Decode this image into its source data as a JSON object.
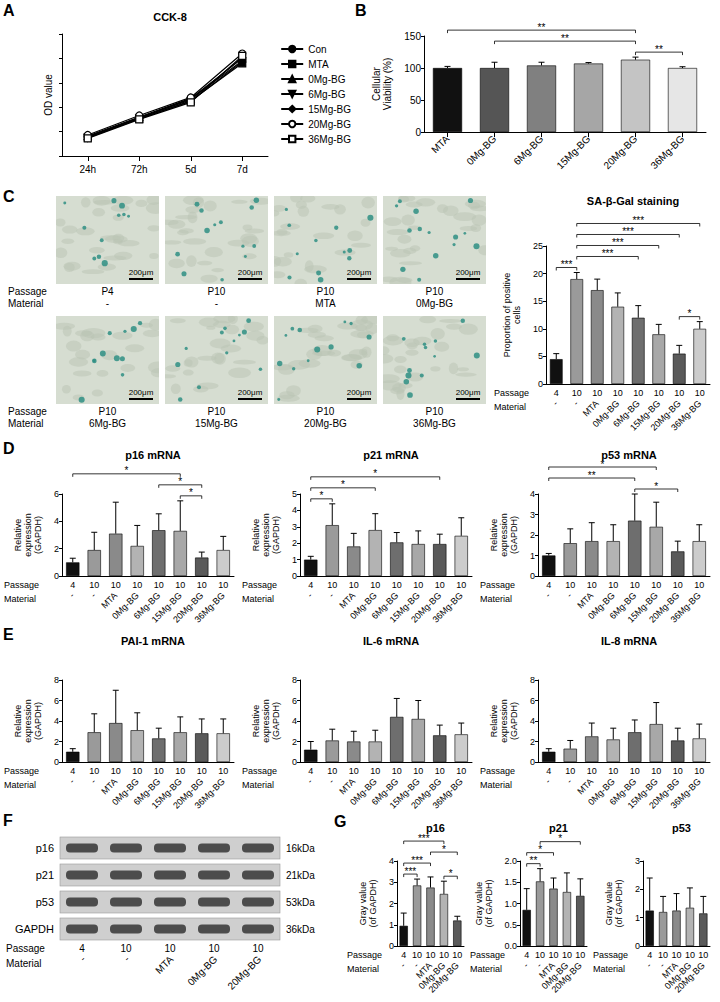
{
  "chart_data": [
    {
      "type": "line",
      "panel": "A",
      "title": "CCK-8",
      "y_label": "OD value",
      "categories": [
        "24h",
        "72h",
        "5d",
        "7d"
      ],
      "series": [
        {
          "name": "Con",
          "color": "#000000",
          "marker": "circle",
          "values": [
            0.4,
            0.78,
            1.17,
            1.95
          ]
        },
        {
          "name": "MTA",
          "color": "#000000",
          "marker": "square",
          "values": [
            0.38,
            0.76,
            1.13,
            1.9
          ]
        },
        {
          "name": "0Mg-BG",
          "color": "#000000",
          "marker": "triangle",
          "values": [
            0.41,
            0.8,
            1.18,
            2.0
          ]
        },
        {
          "name": "6Mg-BG",
          "color": "#000000",
          "marker": "triangle-down",
          "values": [
            0.37,
            0.77,
            1.12,
            1.93
          ]
        },
        {
          "name": "15Mg-BG",
          "color": "#000000",
          "marker": "diamond",
          "values": [
            0.39,
            0.79,
            1.15,
            2.02
          ]
        },
        {
          "name": "20Mg-BG",
          "color": "#000000",
          "marker": "circle-open",
          "values": [
            0.43,
            0.83,
            1.2,
            2.1
          ]
        },
        {
          "name": "36Mg-BG",
          "color": "#000000",
          "marker": "square-open",
          "values": [
            0.36,
            0.75,
            1.1,
            2.05
          ]
        }
      ],
      "ylim": [
        0,
        2.5
      ],
      "yticks": [
        0,
        0.5,
        1,
        1.5,
        2,
        2.5
      ],
      "tick_labels": "x",
      "legend": "right",
      "grid": false
    },
    {
      "type": "bar",
      "panel": "B",
      "y_label": "Cellular Viability (%)",
      "categories": [
        "MTA",
        "0Mg-BG",
        "6Mg-BG",
        "15Mg-BG",
        "20Mg-BG",
        "36Mg-BG"
      ],
      "values": [
        100,
        100,
        104,
        107,
        113,
        100
      ],
      "errors": [
        2.5,
        9,
        5,
        1.5,
        4,
        2
      ],
      "colors": [
        "#111111",
        "#555555",
        "#808080",
        "#a6a6a6",
        "#c4c4c4",
        "#e6e6e6"
      ],
      "ylim": [
        0,
        150
      ],
      "yticks": [
        0,
        50,
        100,
        150
      ],
      "significance": [
        {
          "from": 0,
          "to": 4,
          "label": "**"
        },
        {
          "from": 1,
          "to": 4,
          "label": "**"
        },
        {
          "from": 4,
          "to": 5,
          "label": "**"
        }
      ],
      "grid": false
    },
    {
      "type": "bar",
      "title": "SA-β-Gal staining",
      "y_label": "Proportion of positive cells",
      "x_rows": [
        {
          "label": "Passage",
          "values": [
            "4",
            "10",
            "10",
            "10",
            "10",
            "10",
            "10",
            "10"
          ]
        },
        {
          "label": "Material",
          "values": [
            "-",
            "-",
            "MTA",
            "0Mg-BG",
            "6Mg-BG",
            "15Mg-BG",
            "20Mg-BG",
            "36Mg-BG"
          ]
        }
      ],
      "values": [
        4.5,
        19,
        17,
        14,
        12,
        9,
        5.5,
        10
      ],
      "errors": [
        1,
        1.2,
        2,
        2.5,
        2.2,
        1.8,
        1.5,
        1.3
      ],
      "colors": [
        "#111111",
        "#9a9a9a",
        "#8a8a8a",
        "#b3b3b3",
        "#6e6e6e",
        "#a8a8a8",
        "#5a5a5a",
        "#cccccc"
      ],
      "ylim": [
        0,
        25
      ],
      "yticks": [
        0,
        5,
        10,
        15,
        20,
        25
      ],
      "significance": [
        {
          "from": 0,
          "to": 1,
          "label": "***"
        },
        {
          "from": 1,
          "to": 4,
          "label": "***"
        },
        {
          "from": 1,
          "to": 5,
          "label": "***"
        },
        {
          "from": 1,
          "to": 6,
          "label": "***"
        },
        {
          "from": 1,
          "to": 7,
          "label": "***"
        },
        {
          "from": 6,
          "to": 7,
          "label": "*"
        }
      ],
      "grid": false
    },
    {
      "type": "bar",
      "panel": "D",
      "title": "p16 mRNA",
      "y_label": "Relative expression (GAPDH)",
      "x_rows": [
        {
          "label": "Passage",
          "values": [
            "4",
            "10",
            "10",
            "10",
            "10",
            "10",
            "10",
            "10"
          ]
        },
        {
          "label": "Material",
          "values": [
            "-",
            "-",
            "MTA",
            "0Mg-BG",
            "6Mg-BG",
            "15Mg-BG",
            "20Mg-BG",
            "36Mg-BG"
          ]
        }
      ],
      "values": [
        1.0,
        1.9,
        3.1,
        2.2,
        3.35,
        3.3,
        1.35,
        1.9
      ],
      "errors": [
        0.3,
        1.3,
        2.3,
        1.5,
        1.2,
        2.2,
        0.4,
        1.0
      ],
      "colors": [
        "#111111",
        "#9a9a9a",
        "#8a8a8a",
        "#b3b3b3",
        "#6e6e6e",
        "#a8a8a8",
        "#5a5a5a",
        "#cccccc"
      ],
      "ylim": [
        0,
        6
      ],
      "yticks": [
        0,
        2,
        4,
        6
      ],
      "significance": [
        {
          "from": 0,
          "to": 5,
          "label": "*"
        },
        {
          "from": 4,
          "to": 6,
          "label": "*"
        },
        {
          "from": 5,
          "to": 6,
          "label": "*"
        }
      ],
      "grid": false
    },
    {
      "type": "bar",
      "title": "p21 mRNA",
      "y_label": "Relative expression (GAPDH)",
      "x_rows": [
        {
          "label": "Passage",
          "values": [
            "4",
            "10",
            "10",
            "10",
            "10",
            "10",
            "10",
            "10"
          ]
        },
        {
          "label": "Material",
          "values": [
            "-",
            "-",
            "MTA",
            "0Mg-BG",
            "6Mg-BG",
            "15Mg-BG",
            "20Mg-BG",
            "36Mg-BG"
          ]
        }
      ],
      "values": [
        1.0,
        3.1,
        1.8,
        2.8,
        2.05,
        1.95,
        1.95,
        2.45
      ],
      "errors": [
        0.2,
        1.3,
        0.8,
        1.0,
        0.6,
        0.8,
        0.6,
        1.1
      ],
      "colors": [
        "#111111",
        "#9a9a9a",
        "#8a8a8a",
        "#b3b3b3",
        "#6e6e6e",
        "#a8a8a8",
        "#5a5a5a",
        "#cccccc"
      ],
      "ylim": [
        0,
        5
      ],
      "yticks": [
        0,
        1,
        2,
        3,
        4,
        5
      ],
      "significance": [
        {
          "from": 0,
          "to": 1,
          "label": "*"
        },
        {
          "from": 0,
          "to": 3,
          "label": "*"
        },
        {
          "from": 0,
          "to": 6,
          "label": "*"
        }
      ],
      "grid": false
    },
    {
      "type": "bar",
      "title": "p53 mRNA",
      "y_label": "Relative expression (GAPDH)",
      "x_rows": [
        {
          "label": "Passage",
          "values": [
            "4",
            "10",
            "10",
            "10",
            "10",
            "10",
            "10",
            "10"
          ]
        },
        {
          "label": "Material",
          "values": [
            "-",
            "-",
            "MTA",
            "0Mg-BG",
            "6Mg-BG",
            "15Mg-BG",
            "20Mg-BG",
            "36Mg-BG"
          ]
        }
      ],
      "values": [
        1.0,
        1.6,
        1.7,
        1.7,
        2.7,
        2.4,
        1.2,
        1.7
      ],
      "errors": [
        0.1,
        0.7,
        0.9,
        0.8,
        1.3,
        1.2,
        0.5,
        0.8
      ],
      "colors": [
        "#111111",
        "#9a9a9a",
        "#8a8a8a",
        "#b3b3b3",
        "#6e6e6e",
        "#a8a8a8",
        "#5a5a5a",
        "#cccccc"
      ],
      "ylim": [
        0,
        4
      ],
      "yticks": [
        0,
        1,
        2,
        3,
        4
      ],
      "significance": [
        {
          "from": 0,
          "to": 4,
          "label": "**"
        },
        {
          "from": 0,
          "to": 5,
          "label": "*"
        },
        {
          "from": 4,
          "to": 6,
          "label": "*"
        }
      ],
      "grid": false
    },
    {
      "type": "bar",
      "panel": "E",
      "title": "PAI-1 mRNA",
      "y_label": "Relative expression (GAPDH)",
      "x_rows": [
        {
          "label": "Passage",
          "values": [
            "4",
            "10",
            "10",
            "10",
            "10",
            "10",
            "10",
            "10"
          ]
        },
        {
          "label": "Material",
          "values": [
            "-",
            "-",
            "MTA",
            "0Mg-BG",
            "6Mg-BG",
            "15Mg-BG",
            "20Mg-BG",
            "36Mg-BG"
          ]
        }
      ],
      "values": [
        1.0,
        2.9,
        3.8,
        3.1,
        2.3,
        2.9,
        2.8,
        2.8
      ],
      "errors": [
        0.3,
        1.8,
        3.2,
        1.7,
        1.0,
        1.5,
        1.4,
        1.4
      ],
      "colors": [
        "#111111",
        "#9a9a9a",
        "#8a8a8a",
        "#b3b3b3",
        "#6e6e6e",
        "#a8a8a8",
        "#5a5a5a",
        "#cccccc"
      ],
      "ylim": [
        0,
        8
      ],
      "yticks": [
        0,
        2,
        4,
        6,
        8
      ],
      "grid": false
    },
    {
      "type": "bar",
      "title": "IL-6 mRNA",
      "y_label": "Relative expression (GAPDH)",
      "x_rows": [
        {
          "label": "Passage",
          "values": [
            "4",
            "10",
            "10",
            "10",
            "10",
            "10",
            "10",
            "10"
          ]
        },
        {
          "label": "Material",
          "values": [
            "-",
            "-",
            "MTA",
            "0Mg-BG",
            "6Mg-BG",
            "15Mg-BG",
            "20Mg-BG",
            "36Mg-BG"
          ]
        }
      ],
      "values": [
        1.2,
        2.1,
        2.0,
        2.0,
        4.4,
        4.2,
        2.6,
        2.7
      ],
      "errors": [
        0.8,
        1.1,
        1.0,
        1.1,
        1.8,
        1.8,
        1.0,
        1.1
      ],
      "colors": [
        "#111111",
        "#9a9a9a",
        "#8a8a8a",
        "#b3b3b3",
        "#6e6e6e",
        "#a8a8a8",
        "#5a5a5a",
        "#cccccc"
      ],
      "ylim": [
        0,
        8
      ],
      "yticks": [
        0,
        2,
        4,
        6,
        8
      ],
      "grid": false
    },
    {
      "type": "bar",
      "title": "IL-8 mRNA",
      "y_label": "Relative expression (GAPDH)",
      "x_rows": [
        {
          "label": "Passage",
          "values": [
            "4",
            "10",
            "10",
            "10",
            "10",
            "10",
            "10",
            "10"
          ]
        },
        {
          "label": "Material",
          "values": [
            "-",
            "-",
            "MTA",
            "0Mg-BG",
            "6Mg-BG",
            "15Mg-BG",
            "20Mg-BG",
            "36Mg-BG"
          ]
        }
      ],
      "values": [
        1.0,
        1.3,
        2.5,
        2.2,
        2.9,
        3.7,
        2.1,
        2.3
      ],
      "errors": [
        0.3,
        0.8,
        1.3,
        1.1,
        1.2,
        2.1,
        1.2,
        1.4
      ],
      "colors": [
        "#111111",
        "#9a9a9a",
        "#8a8a8a",
        "#b3b3b3",
        "#6e6e6e",
        "#a8a8a8",
        "#5a5a5a",
        "#cccccc"
      ],
      "ylim": [
        0,
        8
      ],
      "yticks": [
        0,
        2,
        4,
        6,
        8
      ],
      "grid": false
    },
    {
      "type": "bar",
      "panel": "G",
      "title": "p16",
      "y_label": "Gray value (of GAPDH)",
      "x_rows": [
        {
          "label": "Passage",
          "values": [
            "4",
            "10",
            "10",
            "10",
            "10"
          ]
        },
        {
          "label": "Material",
          "values": [
            "-",
            "-",
            "MTA",
            "0Mg-BG",
            "20Mg-BG"
          ]
        }
      ],
      "values": [
        0.95,
        2.85,
        2.75,
        2.45,
        1.2
      ],
      "errors": [
        0.6,
        0.3,
        0.5,
        0.6,
        0.2
      ],
      "colors": [
        "#111111",
        "#9a9a9a",
        "#8a8a8a",
        "#b3b3b3",
        "#5a5a5a"
      ],
      "ylim": [
        0,
        4
      ],
      "yticks": [
        0,
        1,
        2,
        3,
        4
      ],
      "significance": [
        {
          "from": 0,
          "to": 1,
          "label": "***"
        },
        {
          "from": 0,
          "to": 2,
          "label": "***"
        },
        {
          "from": 0,
          "to": 3,
          "label": "***"
        },
        {
          "from": 2,
          "to": 4,
          "label": "*"
        },
        {
          "from": 3,
          "to": 4,
          "label": "*"
        }
      ],
      "grid": false
    },
    {
      "type": "bar",
      "title": "p21",
      "y_label": "Gray value (of GAPDH)",
      "x_rows": [
        {
          "label": "Passage",
          "values": [
            "4",
            "10",
            "10",
            "10",
            "10"
          ]
        },
        {
          "label": "Material",
          "values": [
            "-",
            "-",
            "MTA",
            "0Mg-BG",
            "20Mg-BG"
          ]
        }
      ],
      "values": [
        0.85,
        1.52,
        1.35,
        1.27,
        1.18
      ],
      "errors": [
        0.5,
        0.3,
        0.25,
        0.45,
        0.4
      ],
      "colors": [
        "#111111",
        "#9a9a9a",
        "#8a8a8a",
        "#b3b3b3",
        "#5a5a5a"
      ],
      "ylim": [
        0,
        2
      ],
      "yticks": [
        {
          "value": 0,
          "label": "0.0"
        },
        0.5,
        {
          "value": 1,
          "label": "1.0"
        },
        1.5,
        {
          "value": 2,
          "label": "2.0"
        }
      ],
      "significance": [
        {
          "from": 0,
          "to": 1,
          "label": "**"
        },
        {
          "from": 0,
          "to": 2,
          "label": "*"
        },
        {
          "from": 1,
          "to": 4,
          "label": "*"
        }
      ],
      "grid": false
    },
    {
      "type": "bar",
      "title": "p53",
      "y_label": "Gray value (of GAPDH)",
      "x_rows": [
        {
          "label": "Passage",
          "values": [
            "4",
            "10",
            "10",
            "10",
            "10"
          ]
        },
        {
          "label": "Material",
          "values": [
            "-",
            "-",
            "MTA",
            "0Mg-BG",
            "20Mg-BG"
          ]
        }
      ],
      "values": [
        1.25,
        1.2,
        1.25,
        1.35,
        1.15
      ],
      "errors": [
        1.15,
        0.55,
        0.6,
        0.7,
        0.6
      ],
      "colors": [
        "#111111",
        "#9a9a9a",
        "#8a8a8a",
        "#b3b3b3",
        "#5a5a5a"
      ],
      "ylim": [
        0,
        3
      ],
      "yticks": [
        0,
        1,
        2,
        3
      ],
      "grid": false
    }
  ],
  "micrographs": {
    "panel": "C",
    "row_labels": [
      "Passage",
      "Material"
    ],
    "scale_bar": "200μm",
    "images": [
      {
        "passage": "P4",
        "material": "-"
      },
      {
        "passage": "P10",
        "material": "-"
      },
      {
        "passage": "P10",
        "material": "MTA"
      },
      {
        "passage": "P10",
        "material": "0Mg-BG"
      },
      {
        "passage": "P10",
        "material": "6Mg-BG"
      },
      {
        "passage": "P10",
        "material": "15Mg-BG"
      },
      {
        "passage": "P10",
        "material": "20Mg-BG"
      },
      {
        "passage": "P10",
        "material": "36Mg-BG"
      }
    ]
  },
  "western_blot": {
    "panel": "F",
    "proteins": [
      "p16",
      "p21",
      "p53",
      "GAPDH"
    ],
    "sizes": [
      "16kDa",
      "21kDa",
      "53kDa",
      "36kDa"
    ],
    "row_labels": [
      "Passage",
      "Material"
    ],
    "passage": [
      "4",
      "10",
      "10",
      "10",
      "10"
    ],
    "material": [
      "-",
      "-",
      "MTA",
      "0Mg-BG",
      "20Mg-BG"
    ]
  }
}
